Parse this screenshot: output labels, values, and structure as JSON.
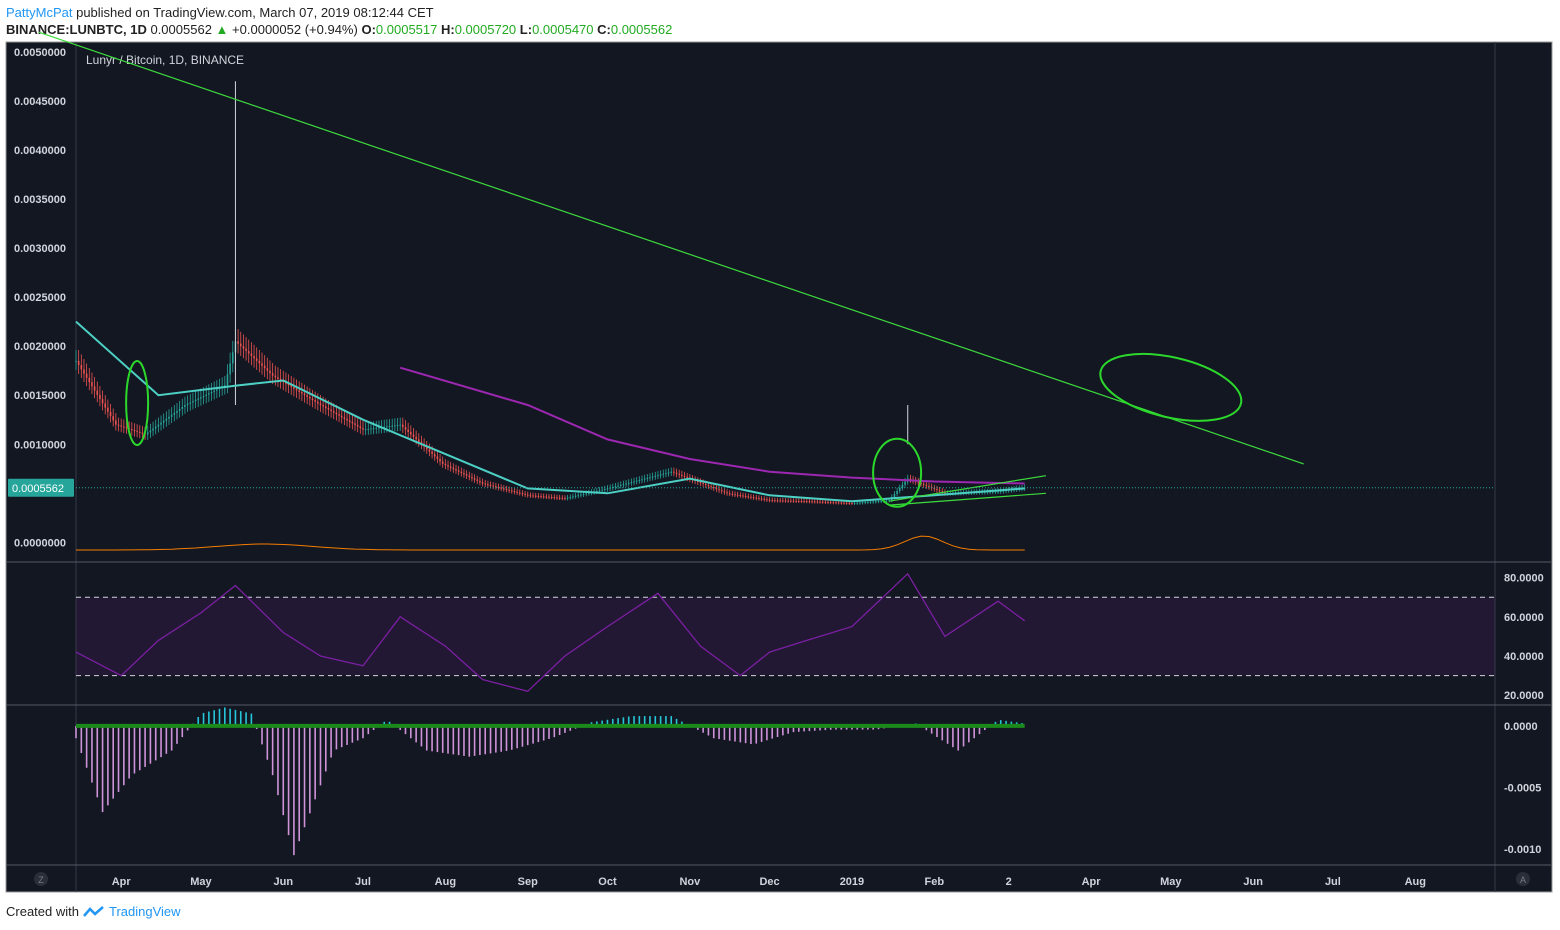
{
  "header": {
    "author": "PattyMcPat",
    "published_text": "published on TradingView.com, March 07, 2019 08:12:44 CET",
    "symbol": "BINANCE:LUNBTC, 1D",
    "last": "0.0005562",
    "change_arrow": "▲",
    "change": "+0.0000052 (+0.94%)",
    "o_label": "O:",
    "o_value": "0.0005517",
    "h_label": "H:",
    "h_value": "0.0005720",
    "l_label": "L:",
    "l_value": "0.0005470",
    "c_label": "C:",
    "c_value": "0.0005562"
  },
  "footer": {
    "created_with": "Created with",
    "brand": "TradingView"
  },
  "colors": {
    "background": "#131722",
    "up": "#26a69a",
    "down": "#ef5350",
    "ema_short": "#2962ff",
    "ema_long": "#4dd0c4",
    "ma_200": "#9c27b0",
    "trendline": "#3ddc3d",
    "volume_ma": "#f57c00",
    "rsi": "#7b1fa2",
    "price_label": "#26a69a"
  },
  "chart_data": [
    {
      "type": "candlestick",
      "title": "Lunyr / Bitcoin, 1D, BINANCE",
      "x_tick_labels": [
        "Apr",
        "May",
        "Jun",
        "Jul",
        "Aug",
        "Sep",
        "Oct",
        "Nov",
        "Dec",
        "2019",
        "Feb",
        "2",
        "Apr",
        "May",
        "Jun",
        "Jul",
        "Aug"
      ],
      "y_tick_labels": [
        "0.0050000",
        "0.0045000",
        "0.0040000",
        "0.0035000",
        "0.0030000",
        "0.0025000",
        "0.0020000",
        "0.0015000",
        "0.0010000",
        "0.0000000"
      ],
      "ylim": [
        -0.0002,
        0.0051
      ],
      "current_price_label": "0.0005562",
      "close_approx": {
        "x": [
          "2018-03-15",
          "2018-03-30",
          "2018-04-10",
          "2018-04-25",
          "2018-05-10",
          "2018-05-14",
          "2018-05-28",
          "2018-06-15",
          "2018-07-01",
          "2018-07-15",
          "2018-07-31",
          "2018-08-15",
          "2018-09-01",
          "2018-09-15",
          "2018-10-01",
          "2018-10-15",
          "2018-10-25",
          "2018-11-15",
          "2018-12-01",
          "2018-12-15",
          "2019-01-01",
          "2019-01-15",
          "2019-01-22",
          "2019-02-05",
          "2019-02-25",
          "2019-03-07"
        ],
        "y": [
          0.00185,
          0.0012,
          0.0011,
          0.0014,
          0.0016,
          0.00205,
          0.0017,
          0.0014,
          0.00115,
          0.0012,
          0.0008,
          0.0006,
          0.00048,
          0.00045,
          0.00055,
          0.00065,
          0.00072,
          0.0005,
          0.00043,
          0.00042,
          0.0004,
          0.00043,
          0.00065,
          0.0005,
          0.00052,
          0.0005562
        ]
      },
      "wick_highs": [
        {
          "x": "2018-05-14",
          "y": 0.0047
        },
        {
          "x": "2019-01-22",
          "y": 0.001
        }
      ],
      "series": [
        {
          "name": "EMA long",
          "x": [
            "2018-03-15",
            "2018-04-15",
            "2018-05-15",
            "2018-06-01",
            "2018-07-01",
            "2018-08-01",
            "2018-09-01",
            "2018-10-01",
            "2018-11-01",
            "2018-12-01",
            "2019-01-01",
            "2019-02-01",
            "2019-03-07"
          ],
          "y": [
            0.00225,
            0.0015,
            0.0016,
            0.00165,
            0.00125,
            0.0009,
            0.00055,
            0.0005,
            0.00065,
            0.00048,
            0.00042,
            0.00048,
            0.00055
          ]
        },
        {
          "name": "MA long",
          "x": [
            "2018-07-15",
            "2018-09-01",
            "2018-10-01",
            "2018-11-01",
            "2018-12-01",
            "2019-01-01",
            "2019-02-01",
            "2019-03-07"
          ],
          "y": [
            0.00178,
            0.0014,
            0.00105,
            0.00085,
            0.00072,
            0.00066,
            0.00062,
            0.0006
          ]
        }
      ],
      "trendlines": [
        {
          "from": {
            "x": "2018-03-01",
            "y": 0.0052
          },
          "to": {
            "x": "2019-06-20",
            "y": 0.0008
          }
        },
        {
          "from": {
            "x": "2019-01-15",
            "y": 0.00042
          },
          "to": {
            "x": "2019-03-15",
            "y": 0.00068
          }
        },
        {
          "from": {
            "x": "2019-01-15",
            "y": 0.00038
          },
          "to": {
            "x": "2019-03-15",
            "y": 0.0005
          }
        }
      ]
    },
    {
      "type": "line",
      "name": "RSI",
      "y_tick_labels": [
        "80.0000",
        "60.0000",
        "40.0000",
        "20.0000"
      ],
      "ylim": [
        15,
        88
      ],
      "bands": [
        30,
        70
      ],
      "x": [
        "2018-03-15",
        "2018-04-01",
        "2018-04-15",
        "2018-05-01",
        "2018-05-14",
        "2018-06-01",
        "2018-06-15",
        "2018-07-01",
        "2018-07-15",
        "2018-08-01",
        "2018-08-15",
        "2018-09-01",
        "2018-09-15",
        "2018-10-01",
        "2018-10-20",
        "2018-11-05",
        "2018-11-20",
        "2018-12-01",
        "2018-12-15",
        "2019-01-01",
        "2019-01-22",
        "2019-02-05",
        "2019-02-25",
        "2019-03-07"
      ],
      "y": [
        42,
        30,
        48,
        62,
        76,
        52,
        40,
        35,
        60,
        45,
        28,
        22,
        40,
        55,
        72,
        45,
        30,
        42,
        48,
        55,
        82,
        50,
        68,
        58
      ]
    },
    {
      "type": "bar",
      "name": "Oscillator histogram",
      "y_tick_labels": [
        "0.0000",
        "-0.0005",
        "-0.0010"
      ],
      "ylim": [
        -0.00113,
        0.00017
      ],
      "x": [
        "2018-03-15",
        "2018-03-25",
        "2018-04-05",
        "2018-04-20",
        "2018-05-01",
        "2018-05-10",
        "2018-05-20",
        "2018-05-28",
        "2018-06-05",
        "2018-06-20",
        "2018-07-01",
        "2018-07-10",
        "2018-07-25",
        "2018-08-10",
        "2018-08-25",
        "2018-09-10",
        "2018-09-25",
        "2018-10-10",
        "2018-10-25",
        "2018-11-10",
        "2018-11-25",
        "2018-12-10",
        "2018-12-25",
        "2019-01-10",
        "2019-01-25",
        "2019-02-10",
        "2019-02-25",
        "2019-03-07"
      ],
      "y": [
        -0.0001,
        -0.0007,
        -0.0004,
        -0.0002,
        0.0001,
        0.00015,
        0.0001,
        -0.0004,
        -0.00105,
        -0.0002,
        -0.0001,
        5e-05,
        -0.0002,
        -0.00025,
        -0.0002,
        -0.0001,
        3e-05,
        8e-05,
        8e-05,
        -0.0001,
        -0.00015,
        -5e-05,
        -3e-05,
        -3e-05,
        2e-05,
        -0.0002,
        5e-05,
        2e-05
      ]
    }
  ]
}
